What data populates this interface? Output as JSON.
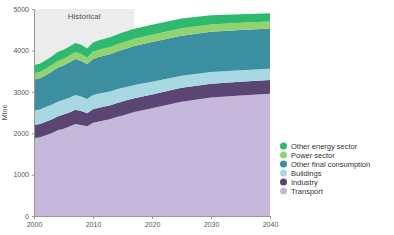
{
  "chart_data": {
    "type": "area",
    "stacked": true,
    "y_label": "Mtoe",
    "x": [
      2000,
      2001,
      2002,
      2003,
      2004,
      2005,
      2006,
      2007,
      2008,
      2009,
      2010,
      2011,
      2012,
      2013,
      2014,
      2015,
      2016,
      2017,
      2020,
      2025,
      2030,
      2035,
      2040
    ],
    "xlim": [
      2000,
      2040
    ],
    "xticks": [
      2000,
      2010,
      2020,
      2030,
      2040
    ],
    "ylim": [
      0,
      5000
    ],
    "yticks": [
      0,
      1000,
      2000,
      3000,
      4000,
      5000
    ],
    "grid": false,
    "legend": "right",
    "annotations": [
      {
        "label": "Historical",
        "x_start": 2000,
        "x_end": 2017
      }
    ],
    "series": [
      {
        "name": "Other energy sector",
        "color": "#2dba6e",
        "values": [
          200,
          200,
          205,
          210,
          215,
          215,
          220,
          220,
          220,
          215,
          225,
          230,
          230,
          235,
          235,
          240,
          240,
          240,
          240,
          235,
          225,
          210,
          200
        ]
      },
      {
        "name": "Power sector",
        "color": "#92d36e",
        "values": [
          150,
          150,
          155,
          160,
          165,
          165,
          170,
          170,
          170,
          165,
          170,
          175,
          175,
          175,
          175,
          175,
          175,
          175,
          180,
          180,
          175,
          170,
          170
        ]
      },
      {
        "name": "Other final consumption",
        "color": "#3b8fa1",
        "values": [
          750,
          760,
          770,
          800,
          820,
          830,
          850,
          870,
          860,
          840,
          870,
          880,
          890,
          900,
          910,
          920,
          930,
          940,
          955,
          965,
          970,
          975,
          975
        ]
      },
      {
        "name": "Buildings",
        "color": "#a8d9e2",
        "values": [
          350,
          350,
          355,
          355,
          355,
          355,
          355,
          355,
          350,
          345,
          345,
          345,
          340,
          340,
          335,
          330,
          325,
          320,
          310,
          295,
          285,
          275,
          270
        ]
      },
      {
        "name": "Industry",
        "color": "#5b4572",
        "values": [
          320,
          320,
          325,
          330,
          335,
          340,
          340,
          345,
          335,
          310,
          330,
          335,
          335,
          335,
          335,
          335,
          335,
          335,
          335,
          335,
          335,
          335,
          335
        ]
      },
      {
        "name": "Transport",
        "color": "#c6b8da",
        "values": [
          1880,
          1900,
          1950,
          2000,
          2070,
          2110,
          2160,
          2220,
          2200,
          2170,
          2250,
          2280,
          2310,
          2340,
          2390,
          2430,
          2470,
          2510,
          2600,
          2760,
          2860,
          2910,
          2950
        ]
      }
    ]
  }
}
